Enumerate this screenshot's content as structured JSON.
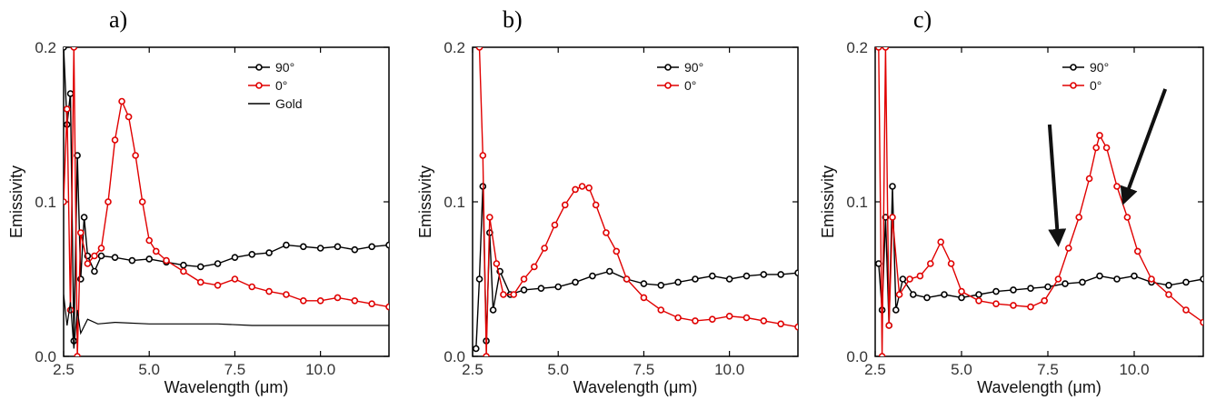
{
  "chart_data": [
    {
      "type": "line",
      "panel_label": "a)",
      "xlabel": "Wavelength (μm)",
      "ylabel": "Emissivity",
      "xlim": [
        2.5,
        12.0
      ],
      "ylim": [
        0.0,
        0.2
      ],
      "x_ticks": [
        "2.5",
        "5.0",
        "7.5",
        "10.0"
      ],
      "y_ticks": [
        "0.0",
        "0.1",
        "0.2"
      ],
      "legend_position": "top-right",
      "series": [
        {
          "name": "90°",
          "color": "#000000",
          "marker": "open-circle",
          "x": [
            2.5,
            2.6,
            2.7,
            2.8,
            2.9,
            3.0,
            3.1,
            3.2,
            3.4,
            3.6,
            4.0,
            4.5,
            5.0,
            5.5,
            6.0,
            6.5,
            7.0,
            7.5,
            8.0,
            8.5,
            9.0,
            9.5,
            10.0,
            10.5,
            11.0,
            11.5,
            12.0
          ],
          "y": [
            0.2,
            0.15,
            0.17,
            0.01,
            0.13,
            0.05,
            0.09,
            0.065,
            0.055,
            0.065,
            0.064,
            0.062,
            0.063,
            0.061,
            0.059,
            0.058,
            0.06,
            0.064,
            0.066,
            0.067,
            0.072,
            0.071,
            0.07,
            0.071,
            0.069,
            0.071,
            0.072
          ]
        },
        {
          "name": "0°",
          "color": "#e00000",
          "marker": "open-circle",
          "x": [
            2.5,
            2.6,
            2.7,
            2.8,
            2.9,
            3.0,
            3.2,
            3.4,
            3.6,
            3.8,
            4.0,
            4.2,
            4.4,
            4.6,
            4.8,
            5.0,
            5.2,
            5.5,
            6.0,
            6.5,
            7.0,
            7.5,
            8.0,
            8.5,
            9.0,
            9.5,
            10.0,
            10.5,
            11.0,
            11.5,
            12.0
          ],
          "y": [
            0.1,
            0.16,
            0.03,
            0.2,
            0.0,
            0.08,
            0.06,
            0.065,
            0.07,
            0.1,
            0.14,
            0.165,
            0.155,
            0.13,
            0.1,
            0.075,
            0.068,
            0.062,
            0.055,
            0.048,
            0.046,
            0.05,
            0.045,
            0.042,
            0.04,
            0.036,
            0.036,
            0.038,
            0.036,
            0.034,
            0.032
          ]
        },
        {
          "name": "Gold",
          "color": "#000000",
          "marker": "none",
          "x": [
            2.5,
            2.6,
            2.7,
            2.8,
            2.9,
            3.0,
            3.2,
            3.5,
            4.0,
            5.0,
            6.0,
            7.0,
            8.0,
            9.0,
            10.0,
            11.0,
            12.0
          ],
          "y": [
            0.04,
            0.02,
            0.035,
            0.005,
            0.03,
            0.015,
            0.024,
            0.021,
            0.022,
            0.021,
            0.021,
            0.021,
            0.02,
            0.02,
            0.02,
            0.02,
            0.02
          ]
        }
      ]
    },
    {
      "type": "line",
      "panel_label": "b)",
      "xlabel": "Wavelength (μm)",
      "ylabel": "Emissivity",
      "xlim": [
        2.5,
        12.0
      ],
      "ylim": [
        0.0,
        0.2
      ],
      "x_ticks": [
        "2.5",
        "5.0",
        "7.5",
        "10.0"
      ],
      "y_ticks": [
        "0.0",
        "0.1",
        "0.2"
      ],
      "legend_position": "top-right",
      "series": [
        {
          "name": "90°",
          "color": "#000000",
          "marker": "open-circle",
          "x": [
            2.6,
            2.7,
            2.8,
            2.9,
            3.0,
            3.1,
            3.3,
            3.6,
            4.0,
            4.5,
            5.0,
            5.5,
            6.0,
            6.5,
            7.0,
            7.5,
            8.0,
            8.5,
            9.0,
            9.5,
            10.0,
            10.5,
            11.0,
            11.5,
            12.0
          ],
          "y": [
            0.005,
            0.05,
            0.11,
            0.01,
            0.08,
            0.03,
            0.055,
            0.04,
            0.043,
            0.044,
            0.045,
            0.048,
            0.052,
            0.055,
            0.05,
            0.047,
            0.046,
            0.048,
            0.05,
            0.052,
            0.05,
            0.052,
            0.053,
            0.053,
            0.054
          ]
        },
        {
          "name": "0°",
          "color": "#e00000",
          "marker": "open-circle",
          "x": [
            2.7,
            2.8,
            2.9,
            3.0,
            3.2,
            3.4,
            3.7,
            4.0,
            4.3,
            4.6,
            4.9,
            5.2,
            5.5,
            5.7,
            5.9,
            6.1,
            6.4,
            6.7,
            7.0,
            7.5,
            8.0,
            8.5,
            9.0,
            9.5,
            10.0,
            10.5,
            11.0,
            11.5,
            12.0
          ],
          "y": [
            0.2,
            0.13,
            0.0,
            0.09,
            0.06,
            0.04,
            0.04,
            0.05,
            0.058,
            0.07,
            0.085,
            0.098,
            0.108,
            0.11,
            0.109,
            0.098,
            0.08,
            0.068,
            0.05,
            0.038,
            0.03,
            0.025,
            0.023,
            0.024,
            0.026,
            0.025,
            0.023,
            0.021,
            0.019
          ]
        }
      ]
    },
    {
      "type": "line",
      "panel_label": "c)",
      "xlabel": "Wavelength (μm)",
      "ylabel": "Emissivity",
      "xlim": [
        2.5,
        12.0
      ],
      "ylim": [
        0.0,
        0.2
      ],
      "x_ticks": [
        "2.5",
        "5.0",
        "7.5",
        "10.0"
      ],
      "y_ticks": [
        "0.0",
        "0.1",
        "0.2"
      ],
      "legend_position": "top-right",
      "annotations": [
        "arrow pointing to ~7.8 μm",
        "arrow pointing to ~9.7 μm"
      ],
      "series": [
        {
          "name": "90°",
          "color": "#000000",
          "marker": "open-circle",
          "x": [
            2.6,
            2.7,
            2.8,
            2.9,
            3.0,
            3.1,
            3.3,
            3.6,
            4.0,
            4.5,
            5.0,
            5.5,
            6.0,
            6.5,
            7.0,
            7.5,
            8.0,
            8.5,
            9.0,
            9.5,
            10.0,
            10.5,
            11.0,
            11.5,
            12.0
          ],
          "y": [
            0.06,
            0.03,
            0.09,
            0.02,
            0.11,
            0.03,
            0.05,
            0.04,
            0.038,
            0.04,
            0.038,
            0.04,
            0.042,
            0.043,
            0.044,
            0.045,
            0.047,
            0.048,
            0.052,
            0.05,
            0.052,
            0.048,
            0.046,
            0.048,
            0.05
          ]
        },
        {
          "name": "0°",
          "color": "#e00000",
          "marker": "open-circle",
          "x": [
            2.6,
            2.7,
            2.8,
            2.9,
            3.0,
            3.2,
            3.5,
            3.8,
            4.1,
            4.4,
            4.7,
            5.0,
            5.5,
            6.0,
            6.5,
            7.0,
            7.4,
            7.8,
            8.1,
            8.4,
            8.7,
            8.9,
            9.0,
            9.2,
            9.5,
            9.8,
            10.1,
            10.5,
            11.0,
            11.5,
            12.0
          ],
          "y": [
            0.2,
            0.0,
            0.2,
            0.02,
            0.09,
            0.04,
            0.05,
            0.052,
            0.06,
            0.074,
            0.06,
            0.042,
            0.036,
            0.034,
            0.033,
            0.032,
            0.036,
            0.05,
            0.07,
            0.09,
            0.115,
            0.135,
            0.143,
            0.135,
            0.11,
            0.09,
            0.068,
            0.05,
            0.04,
            0.03,
            0.022
          ]
        }
      ]
    }
  ]
}
